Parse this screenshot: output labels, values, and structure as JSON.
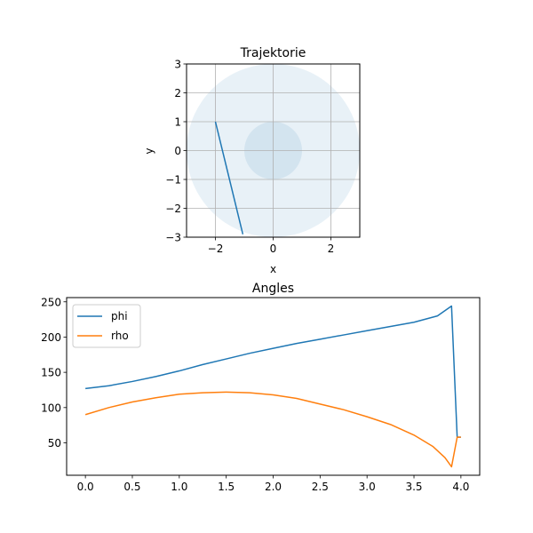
{
  "chart_data": [
    {
      "type": "line",
      "title": "Trajektorie",
      "xlabel": "x",
      "ylabel": "y",
      "xlim": [
        -3,
        3
      ],
      "ylim": [
        -3,
        3
      ],
      "xticks": [
        -2,
        0,
        2
      ],
      "yticks": [
        -3,
        -2,
        -1,
        0,
        1,
        2,
        3
      ],
      "xtick_labels": [
        "−2",
        "0",
        "2"
      ],
      "ytick_labels": [
        "−3",
        "−2",
        "−1",
        "0",
        "1",
        "2",
        "3"
      ],
      "grid": true,
      "aspect": "equal",
      "circles": [
        {
          "cx": 0,
          "cy": 0,
          "r": 3,
          "color": "#1f77b4",
          "opacity": 0.1
        },
        {
          "cx": 0,
          "cy": 0,
          "r": 1,
          "color": "#1f77b4",
          "opacity": 0.1
        }
      ],
      "series": [
        {
          "color": "#1f77b4",
          "x": [
            -2,
            -1.05
          ],
          "y": [
            1,
            -2.9
          ]
        }
      ]
    },
    {
      "type": "line",
      "title": "Angles",
      "xlabel": "",
      "ylabel": "",
      "xlim": [
        -0.2,
        4.2
      ],
      "ylim": [
        4,
        256
      ],
      "xticks": [
        0,
        0.5,
        1,
        1.5,
        2,
        2.5,
        3,
        3.5,
        4
      ],
      "xtick_labels": [
        "0.0",
        "0.5",
        "1.0",
        "1.5",
        "2.0",
        "2.5",
        "3.0",
        "3.5",
        "4.0"
      ],
      "yticks": [
        50,
        100,
        150,
        200,
        250
      ],
      "ytick_labels": [
        "50",
        "100",
        "150",
        "200",
        "250"
      ],
      "grid": false,
      "legend": "upper-left",
      "series": [
        {
          "name": "phi",
          "color": "#1f77b4",
          "x": [
            0,
            0.25,
            0.5,
            0.75,
            1.0,
            1.25,
            1.5,
            1.75,
            2.0,
            2.25,
            2.5,
            2.75,
            3.0,
            3.25,
            3.5,
            3.75,
            3.9,
            3.96,
            4.0
          ],
          "y": [
            127,
            131,
            137,
            144,
            152,
            161,
            169,
            177,
            184,
            191,
            197,
            203,
            209,
            215,
            221,
            230,
            244,
            58,
            58
          ]
        },
        {
          "name": "rho",
          "color": "#ff7f0e",
          "x": [
            0,
            0.25,
            0.5,
            0.75,
            1.0,
            1.25,
            1.5,
            1.75,
            2.0,
            2.25,
            2.5,
            2.75,
            3.0,
            3.25,
            3.5,
            3.7,
            3.83,
            3.9,
            3.96,
            4.0
          ],
          "y": [
            90,
            100,
            108,
            114,
            119,
            121,
            122,
            121,
            118,
            113,
            105,
            97,
            87,
            76,
            61,
            45,
            29,
            16,
            58,
            58
          ]
        }
      ]
    }
  ]
}
